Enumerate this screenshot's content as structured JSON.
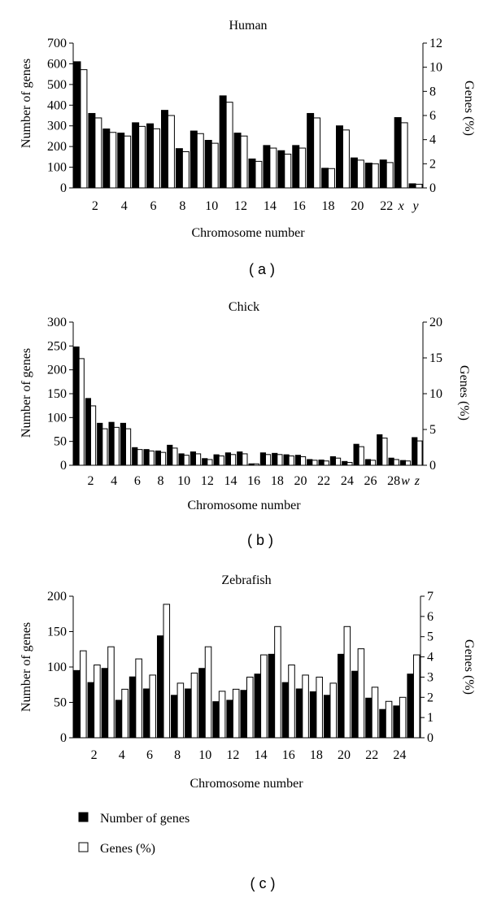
{
  "colors": {
    "genes_count": "#000000",
    "genes_pct": "#ffffff",
    "axis": "#000000"
  },
  "chart_data": [
    {
      "type": "bar",
      "panel_label": "( a )",
      "title": "Human",
      "xlabel": "Chromosome number",
      "ylabel": "Number of genes",
      "y2label": "Genes (%)",
      "ylim": [
        0,
        700
      ],
      "y2lim": [
        0,
        12
      ],
      "yticks": [
        "0",
        "100",
        "200",
        "300",
        "400",
        "500",
        "600",
        "700"
      ],
      "y2ticks": [
        "0",
        "2",
        "4",
        "6",
        "8",
        "10",
        "12"
      ],
      "categories": [
        "1",
        "2",
        "3",
        "4",
        "5",
        "6",
        "7",
        "8",
        "9",
        "10",
        "11",
        "12",
        "13",
        "14",
        "15",
        "16",
        "17",
        "18",
        "19",
        "20",
        "21",
        "22",
        "x",
        "y"
      ],
      "xtick_labels": [
        "",
        "2",
        "",
        "4",
        "",
        "6",
        "",
        "8",
        "",
        "10",
        "",
        "12",
        "",
        "14",
        "",
        "16",
        "",
        "18",
        "",
        "20",
        "",
        "22",
        "x",
        "y"
      ],
      "series": [
        {
          "name": "Number of genes",
          "axis": "left",
          "values": [
            610,
            360,
            285,
            265,
            315,
            310,
            375,
            190,
            275,
            230,
            445,
            265,
            140,
            205,
            180,
            205,
            360,
            95,
            300,
            145,
            120,
            135,
            340,
            20
          ]
        },
        {
          "name": "Genes (%)",
          "axis": "right",
          "values": [
            9.8,
            5.8,
            4.6,
            4.3,
            5.1,
            4.9,
            6.0,
            3.0,
            4.5,
            3.7,
            7.1,
            4.3,
            2.2,
            3.3,
            2.8,
            3.3,
            5.8,
            1.6,
            4.8,
            2.3,
            2.0,
            2.1,
            5.4,
            0.3
          ]
        }
      ]
    },
    {
      "type": "bar",
      "panel_label": "( b )",
      "title": "Chick",
      "xlabel": "Chromosome number",
      "ylabel": "Number of genes",
      "y2label": "Genes (%)",
      "ylim": [
        0,
        300
      ],
      "y2lim": [
        0,
        20
      ],
      "yticks": [
        "0",
        "50",
        "100",
        "150",
        "200",
        "250",
        "300"
      ],
      "y2ticks": [
        "0",
        "5",
        "10",
        "15",
        "20"
      ],
      "categories": [
        "1",
        "2",
        "3",
        "4",
        "5",
        "6",
        "7",
        "8",
        "9",
        "10",
        "11",
        "12",
        "13",
        "14",
        "15",
        "16",
        "17",
        "18",
        "19",
        "20",
        "21",
        "22",
        "23",
        "24",
        "25",
        "26",
        "27",
        "28",
        "w",
        "z"
      ],
      "xtick_labels": [
        "",
        "2",
        "",
        "4",
        "",
        "6",
        "",
        "8",
        "",
        "10",
        "",
        "12",
        "",
        "14",
        "",
        "16",
        "",
        "18",
        "",
        "20",
        "",
        "22",
        "",
        "24",
        "",
        "26",
        "",
        "28",
        "w",
        "z"
      ],
      "series": [
        {
          "name": "Number of genes",
          "axis": "left",
          "values": [
            248,
            140,
            88,
            90,
            88,
            37,
            33,
            30,
            42,
            24,
            28,
            14,
            22,
            26,
            28,
            3,
            26,
            25,
            22,
            21,
            12,
            11,
            18,
            8,
            44,
            12,
            64,
            15,
            10,
            58
          ]
        },
        {
          "name": "Genes (%)",
          "axis": "right",
          "values": [
            14.9,
            8.3,
            5.1,
            5.3,
            5.1,
            2.2,
            2.0,
            1.8,
            2.4,
            1.4,
            1.6,
            0.8,
            1.3,
            1.5,
            1.6,
            0.2,
            1.5,
            1.5,
            1.3,
            1.2,
            0.7,
            0.6,
            1.0,
            0.4,
            2.6,
            0.7,
            3.8,
            0.8,
            0.6,
            3.4
          ]
        }
      ]
    },
    {
      "type": "bar",
      "panel_label": "( c )",
      "title": "Zebrafish",
      "xlabel": "Chromosome number",
      "ylabel": "Number of genes",
      "y2label": "Genes (%)",
      "ylim": [
        0,
        200
      ],
      "y2lim": [
        0,
        7
      ],
      "yticks": [
        "0",
        "50",
        "100",
        "150",
        "200"
      ],
      "y2ticks": [
        "0",
        "1",
        "2",
        "3",
        "4",
        "5",
        "6",
        "7"
      ],
      "categories": [
        "1",
        "2",
        "3",
        "4",
        "5",
        "6",
        "7",
        "8",
        "9",
        "10",
        "11",
        "12",
        "13",
        "14",
        "15",
        "16",
        "17",
        "18",
        "19",
        "20",
        "21",
        "22",
        "23",
        "24",
        "25"
      ],
      "xtick_labels": [
        "",
        "2",
        "",
        "4",
        "",
        "6",
        "",
        "8",
        "",
        "10",
        "",
        "12",
        "",
        "14",
        "",
        "16",
        "",
        "18",
        "",
        "20",
        "",
        "22",
        "",
        "24",
        ""
      ],
      "series": [
        {
          "name": "Number of genes",
          "axis": "left",
          "values": [
            95,
            78,
            98,
            53,
            86,
            69,
            144,
            60,
            69,
            98,
            51,
            53,
            67,
            90,
            118,
            78,
            69,
            65,
            60,
            118,
            94,
            56,
            40,
            45,
            90
          ]
        },
        {
          "name": "Genes (%)",
          "axis": "right",
          "values": [
            4.3,
            3.6,
            4.5,
            2.4,
            3.9,
            3.1,
            6.6,
            2.7,
            3.2,
            4.5,
            2.3,
            2.4,
            3.0,
            4.1,
            5.5,
            3.6,
            3.1,
            3.0,
            2.7,
            5.5,
            4.4,
            2.5,
            1.8,
            2.0,
            4.1
          ]
        }
      ],
      "legend": [
        {
          "label": "Number of genes",
          "swatch": "filled"
        },
        {
          "label": "Genes (%)",
          "swatch": "open"
        }
      ]
    }
  ]
}
